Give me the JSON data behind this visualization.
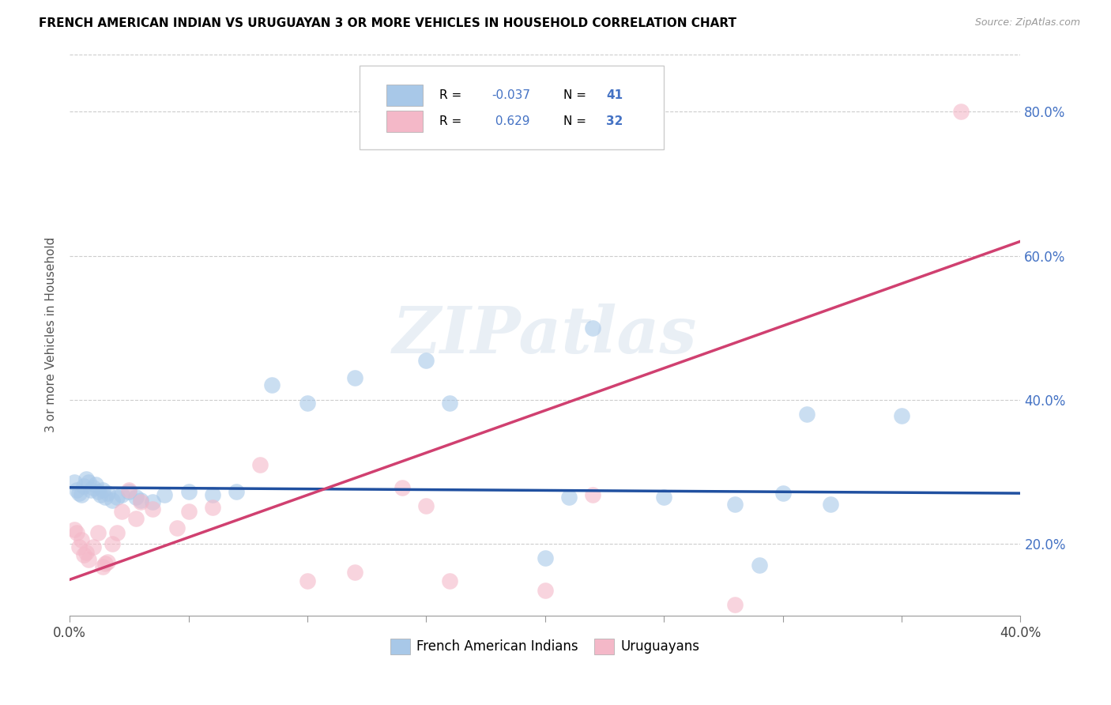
{
  "title": "FRENCH AMERICAN INDIAN VS URUGUAYAN 3 OR MORE VEHICLES IN HOUSEHOLD CORRELATION CHART",
  "source": "Source: ZipAtlas.com",
  "ylabel": "3 or more Vehicles in Household",
  "x_min": 0.0,
  "x_max": 0.4,
  "y_min": 0.1,
  "y_max": 0.88,
  "x_ticks": [
    0.0,
    0.05,
    0.1,
    0.15,
    0.2,
    0.25,
    0.3,
    0.35,
    0.4
  ],
  "y_ticks": [
    0.2,
    0.4,
    0.6,
    0.8
  ],
  "y_tick_labels": [
    "20.0%",
    "40.0%",
    "60.0%",
    "80.0%"
  ],
  "legend1_label": "French American Indians",
  "legend2_label": "Uruguayans",
  "r1": "-0.037",
  "n1": "41",
  "r2": "0.629",
  "n2": "32",
  "color_blue": "#a8c8e8",
  "color_pink": "#f4b8c8",
  "line_blue": "#2050a0",
  "line_pink": "#d04070",
  "watermark": "ZIPatlas",
  "blue_x": [
    0.002,
    0.003,
    0.004,
    0.005,
    0.006,
    0.007,
    0.008,
    0.009,
    0.01,
    0.011,
    0.012,
    0.013,
    0.014,
    0.015,
    0.016,
    0.018,
    0.02,
    0.022,
    0.025,
    0.028,
    0.03,
    0.035,
    0.04,
    0.05,
    0.06,
    0.07,
    0.085,
    0.1,
    0.12,
    0.15,
    0.16,
    0.2,
    0.21,
    0.22,
    0.25,
    0.28,
    0.29,
    0.3,
    0.31,
    0.32,
    0.35
  ],
  "blue_y": [
    0.285,
    0.275,
    0.27,
    0.268,
    0.28,
    0.29,
    0.285,
    0.275,
    0.278,
    0.282,
    0.272,
    0.268,
    0.275,
    0.265,
    0.27,
    0.26,
    0.265,
    0.268,
    0.272,
    0.265,
    0.26,
    0.258,
    0.268,
    0.272,
    0.268,
    0.272,
    0.42,
    0.395,
    0.43,
    0.455,
    0.395,
    0.18,
    0.265,
    0.5,
    0.265,
    0.255,
    0.17,
    0.27,
    0.38,
    0.255,
    0.378
  ],
  "pink_x": [
    0.002,
    0.003,
    0.004,
    0.005,
    0.006,
    0.007,
    0.008,
    0.01,
    0.012,
    0.014,
    0.015,
    0.016,
    0.018,
    0.02,
    0.022,
    0.025,
    0.028,
    0.03,
    0.035,
    0.045,
    0.05,
    0.06,
    0.08,
    0.1,
    0.12,
    0.14,
    0.15,
    0.16,
    0.2,
    0.22,
    0.28,
    0.375
  ],
  "pink_y": [
    0.22,
    0.215,
    0.195,
    0.205,
    0.185,
    0.188,
    0.178,
    0.195,
    0.215,
    0.168,
    0.172,
    0.175,
    0.2,
    0.215,
    0.245,
    0.275,
    0.235,
    0.258,
    0.248,
    0.222,
    0.245,
    0.25,
    0.31,
    0.148,
    0.16,
    0.278,
    0.252,
    0.148,
    0.135,
    0.268,
    0.115,
    0.8
  ],
  "blue_line_x0": 0.0,
  "blue_line_y0": 0.278,
  "blue_line_x1": 0.4,
  "blue_line_y1": 0.27,
  "pink_line_x0": 0.0,
  "pink_line_y0": 0.15,
  "pink_line_x1": 0.4,
  "pink_line_y1": 0.62
}
